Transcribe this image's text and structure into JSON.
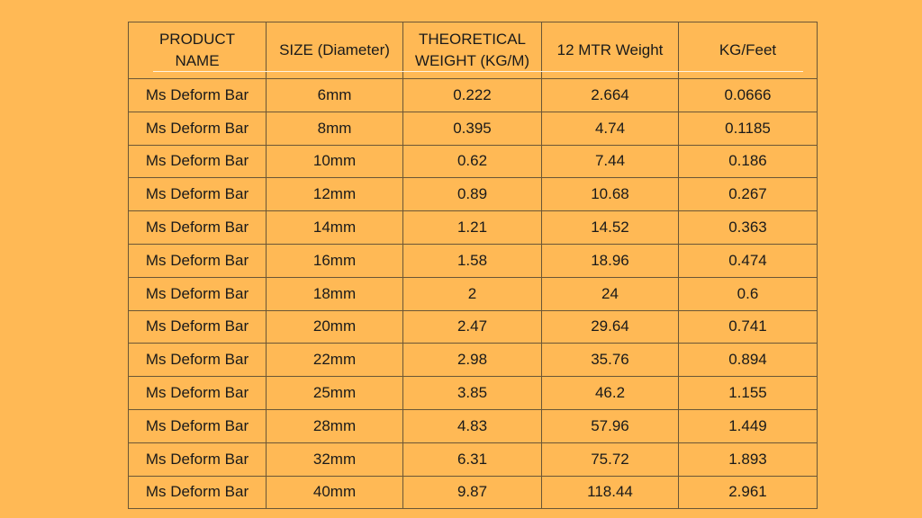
{
  "table": {
    "header": [
      "PRODUCT NAME",
      "SIZE (Diameter)",
      "THEORETICAL WEIGHT (KG/M)",
      "12 MTR Weight",
      "KG/Feet"
    ],
    "rows": [
      [
        "Ms Deform Bar",
        "6mm",
        "0.222",
        "2.664",
        "0.0666"
      ],
      [
        "Ms Deform Bar",
        "8mm",
        "0.395",
        "4.74",
        "0.1185"
      ],
      [
        "Ms Deform Bar",
        "10mm",
        "0.62",
        "7.44",
        "0.186"
      ],
      [
        "Ms Deform Bar",
        "12mm",
        "0.89",
        "10.68",
        "0.267"
      ],
      [
        "Ms Deform Bar",
        "14mm",
        "1.21",
        "14.52",
        "0.363"
      ],
      [
        "Ms Deform Bar",
        "16mm",
        "1.58",
        "18.96",
        "0.474"
      ],
      [
        "Ms Deform Bar",
        "18mm",
        "2",
        "24",
        "0.6"
      ],
      [
        "Ms Deform Bar",
        "20mm",
        "2.47",
        "29.64",
        "0.741"
      ],
      [
        "Ms Deform Bar",
        "22mm",
        "2.98",
        "35.76",
        "0.894"
      ],
      [
        "Ms Deform Bar",
        "25mm",
        "3.85",
        "46.2",
        "1.155"
      ],
      [
        "Ms Deform Bar",
        "28mm",
        "4.83",
        "57.96",
        "1.449"
      ],
      [
        "Ms Deform Bar",
        "32mm",
        "6.31",
        "75.72",
        "1.893"
      ],
      [
        "Ms Deform Bar",
        "40mm",
        "9.87",
        "118.44",
        "2.961"
      ]
    ]
  }
}
